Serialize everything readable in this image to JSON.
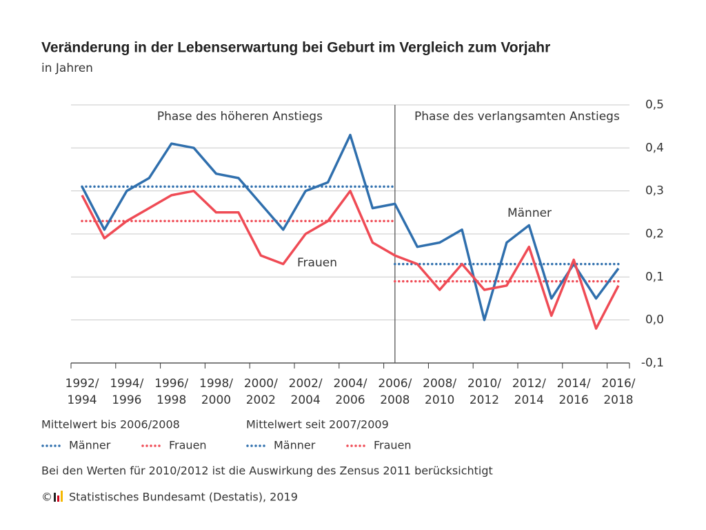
{
  "chart_data": {
    "type": "line",
    "title": "Veränderung in der Lebenserwartung bei Geburt im Vergleich zum Vorjahr",
    "subtitle": "in Jahren",
    "categories": [
      "1992/1994",
      null,
      "1994/1996",
      null,
      "1996/1998",
      null,
      "1998/2000",
      null,
      "2000/2002",
      null,
      "2002/2004",
      null,
      "2004/2006",
      null,
      "2006/2008",
      null,
      "2008/2010",
      null,
      "2010/2012",
      null,
      "2012/2014",
      null,
      "2014/2016",
      null,
      "2016/2018"
    ],
    "series": [
      {
        "name": "Männer",
        "color": "#2f6fad",
        "values": [
          0.31,
          0.21,
          0.3,
          0.33,
          0.41,
          0.4,
          0.34,
          0.33,
          0.27,
          0.21,
          0.3,
          0.32,
          0.43,
          0.26,
          0.27,
          0.17,
          0.18,
          0.21,
          0.0,
          0.18,
          0.22,
          0.05,
          0.13,
          0.05,
          0.12
        ]
      },
      {
        "name": "Frauen",
        "color": "#ef4b55",
        "values": [
          0.29,
          0.19,
          0.23,
          0.26,
          0.29,
          0.3,
          0.25,
          0.25,
          0.15,
          0.13,
          0.2,
          0.23,
          0.3,
          0.18,
          0.15,
          0.13,
          0.07,
          0.13,
          0.07,
          0.08,
          0.17,
          0.01,
          0.14,
          -0.02,
          0.08
        ]
      }
    ],
    "mean_groups": [
      {
        "title": "Mittelwert bis 2006/2008",
        "series": [
          {
            "name": "Männer",
            "color": "#2f6fad",
            "values": [
              0.31,
              0.31,
              0.31,
              0.31,
              0.31,
              0.31,
              0.31,
              0.31,
              0.31,
              0.31,
              0.31,
              0.31,
              0.31,
              0.31,
              0.31,
              null,
              null,
              null,
              null,
              null,
              null,
              null,
              null,
              null,
              null
            ]
          },
          {
            "name": "Frauen",
            "color": "#ef4b55",
            "values": [
              0.23,
              0.23,
              0.23,
              0.23,
              0.23,
              0.23,
              0.23,
              0.23,
              0.23,
              0.23,
              0.23,
              0.23,
              0.23,
              0.23,
              0.23,
              null,
              null,
              null,
              null,
              null,
              null,
              null,
              null,
              null,
              null
            ]
          }
        ]
      },
      {
        "title": "Mittelwert seit 2007/2009",
        "series": [
          {
            "name": "Männer",
            "color": "#2f6fad",
            "values": [
              null,
              null,
              null,
              null,
              null,
              null,
              null,
              null,
              null,
              null,
              null,
              null,
              null,
              null,
              0.13,
              0.13,
              0.13,
              0.13,
              0.13,
              0.13,
              0.13,
              0.13,
              0.13,
              0.13,
              0.13
            ]
          },
          {
            "name": "Frauen",
            "color": "#ef4b55",
            "values": [
              null,
              null,
              null,
              null,
              null,
              null,
              null,
              null,
              null,
              null,
              null,
              null,
              null,
              null,
              0.09,
              0.09,
              0.09,
              0.09,
              0.09,
              0.09,
              0.09,
              0.09,
              0.09,
              0.09,
              0.09
            ]
          }
        ]
      }
    ],
    "phases": [
      "Phase des höheren Anstiegs",
      "Phase des verlangsamten Anstiegs"
    ],
    "divider_at": "2006/2008",
    "ylim": [
      -0.1,
      0.5
    ],
    "yticks": [
      {
        "value": -0.1,
        "label": "-0,1"
      },
      {
        "value": 0,
        "label": "0,0"
      },
      {
        "value": 0.1,
        "label": "0,1"
      },
      {
        "value": 0.2,
        "label": "0,2"
      },
      {
        "value": 0.3,
        "label": "0,3"
      },
      {
        "value": 0.4,
        "label": "0,4"
      },
      {
        "value": 0.5,
        "label": "0,5"
      }
    ],
    "grid": true,
    "note": "Bei den Werten für 2010/2012 ist die Auswirkung des Zensus 2011 berücksichtigt",
    "source_prefix": "©",
    "source": "Statistisches Bundesamt (Destatis), 2019"
  }
}
